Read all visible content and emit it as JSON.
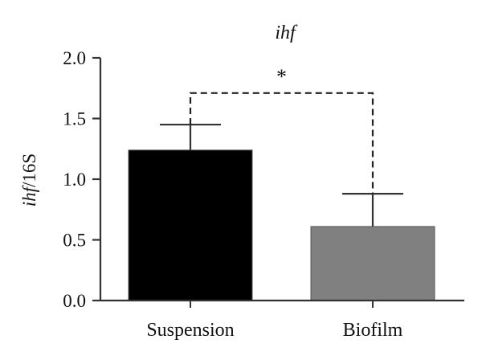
{
  "chart_data": {
    "type": "bar",
    "title": "ihf",
    "ylabel": {
      "italic_part": "ihf",
      "plain_part": "/16S"
    },
    "xlabel": "",
    "categories": [
      "Suspension",
      "Biofilm"
    ],
    "values": [
      1.24,
      0.61
    ],
    "error_upper": [
      0.21,
      0.27
    ],
    "bar_colors": [
      "#000000",
      "#808080"
    ],
    "ylim": [
      0.0,
      2.0
    ],
    "yticks": [
      "0.0",
      "0.5",
      "1.0",
      "1.5",
      "2.0"
    ],
    "grid": false,
    "significance": {
      "between": [
        0,
        1
      ],
      "level": 1.71,
      "label": "*"
    }
  }
}
